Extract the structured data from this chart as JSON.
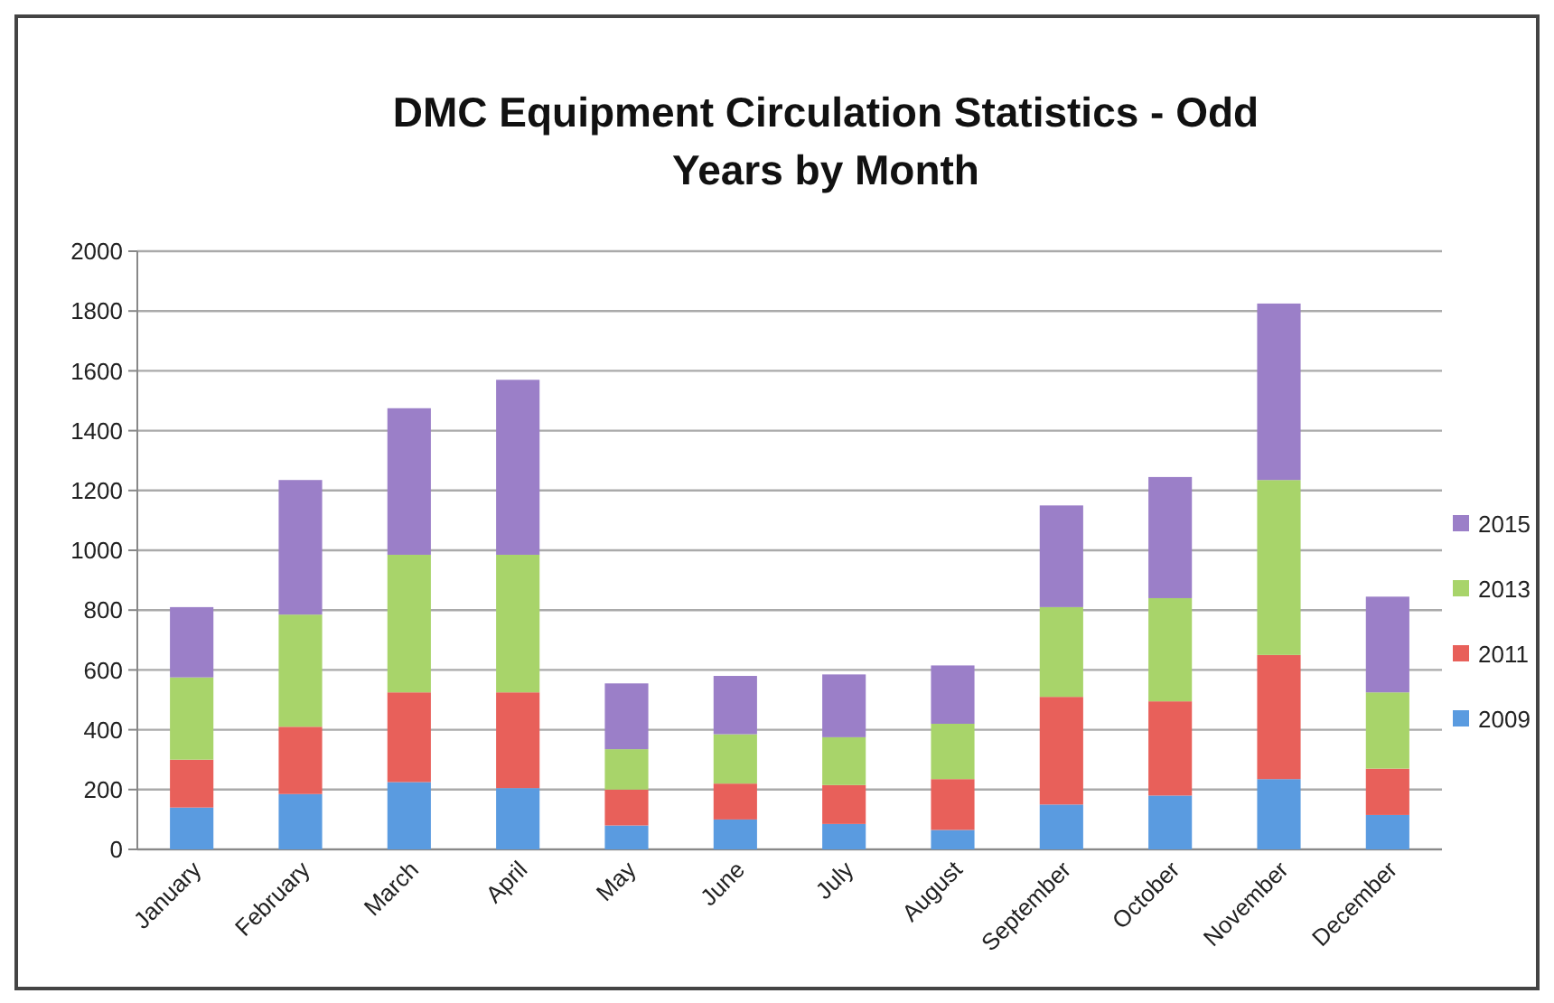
{
  "chart_data": {
    "type": "bar",
    "title": "DMC Equipment Circulation Statistics - Odd Years by Month",
    "stacked": true,
    "categories": [
      "January",
      "February",
      "March",
      "April",
      "May",
      "June",
      "July",
      "August",
      "September",
      "October",
      "November",
      "December"
    ],
    "series": [
      {
        "name": "2009",
        "color": "#5a9be0",
        "values": [
          140,
          185,
          225,
          205,
          80,
          100,
          85,
          65,
          150,
          180,
          235,
          115
        ]
      },
      {
        "name": "2011",
        "color": "#e8605a",
        "values": [
          160,
          225,
          300,
          320,
          120,
          120,
          130,
          170,
          360,
          315,
          415,
          155
        ]
      },
      {
        "name": "2013",
        "color": "#a8d46a",
        "values": [
          275,
          375,
          460,
          460,
          135,
          165,
          160,
          185,
          300,
          345,
          585,
          255
        ]
      },
      {
        "name": "2015",
        "color": "#9b7fc8",
        "values": [
          235,
          450,
          490,
          585,
          220,
          195,
          210,
          195,
          340,
          405,
          590,
          320
        ]
      }
    ],
    "ylim": [
      0,
      2000
    ],
    "yticks": [
      0,
      200,
      400,
      600,
      800,
      1000,
      1200,
      1400,
      1600,
      1800,
      2000
    ],
    "grid": "y",
    "legend": "right"
  }
}
